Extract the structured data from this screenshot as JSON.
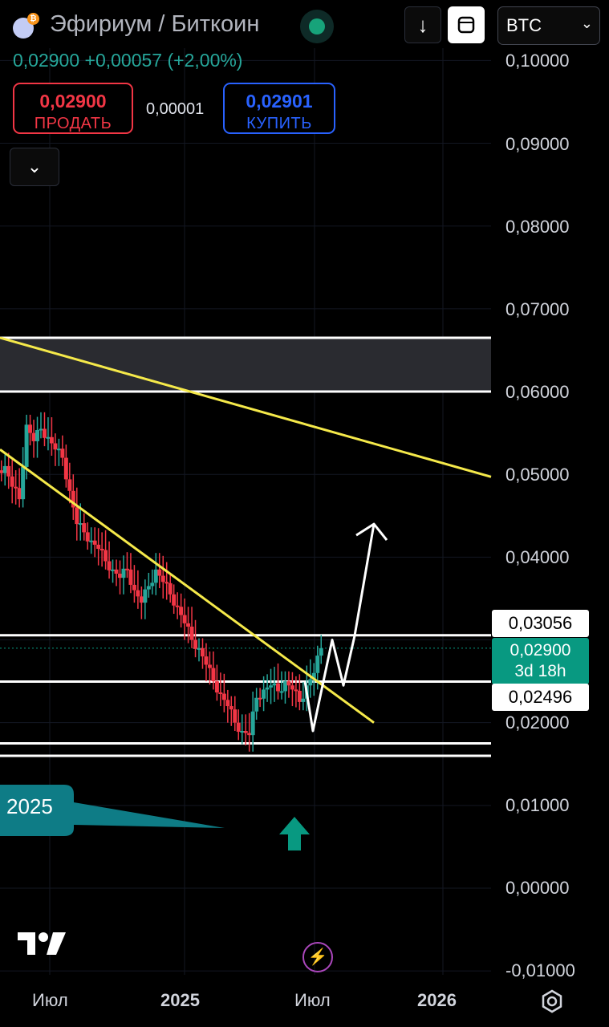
{
  "header": {
    "title": "Эфириум / Биткоин",
    "btc_icon_glyph": "₿",
    "symbol_select": "BTC"
  },
  "quote": {
    "price": "0,02900",
    "change": "+0,00057",
    "change_pct": "(+2,00%)"
  },
  "trade": {
    "sell_price": "0,02900",
    "sell_label": "ПРОДАТЬ",
    "spread": "0,00001",
    "buy_price": "0,02901",
    "buy_label": "КУПИТЬ"
  },
  "y_axis": {
    "ticks": [
      "0,10000",
      "0,09000",
      "0,08000",
      "0,07000",
      "0,06000",
      "0,05000",
      "0,04000",
      "0,02000",
      "0,01000",
      "0,00000",
      "-0,01000"
    ]
  },
  "x_axis": {
    "ticks": [
      "Июл",
      "2025",
      "Июл",
      "2026"
    ]
  },
  "price_labels": {
    "upper": "0,03056",
    "current_price": "0,02900",
    "countdown": "3d 18h",
    "lower": "0,02496"
  },
  "annotations": {
    "callout_text": "2025"
  },
  "colors": {
    "up": "#26a69a",
    "down": "#f23645",
    "trendline": "#f5e94a",
    "accent_blue": "#2962ff",
    "callout": "#0e7c86"
  },
  "icons": {
    "download": "arrow-down-icon",
    "fullscreen": "square-icon",
    "collapse": "chevron-down-icon",
    "bolt": "lightning-icon",
    "settings": "hexagon-settings-icon"
  },
  "chart_data": {
    "type": "candlestick",
    "symbol": "ETH/BTC",
    "ylim": [
      -0.01,
      0.1
    ],
    "zones": [
      {
        "kind": "resistance-box",
        "low": 0.06,
        "high": 0.0665
      },
      {
        "kind": "support-line",
        "value": 0.03056
      },
      {
        "kind": "support-line",
        "value": 0.02496
      },
      {
        "kind": "support-line",
        "value": 0.0175
      },
      {
        "kind": "support-line",
        "value": 0.016
      }
    ],
    "trendlines": [
      {
        "from": [
          0,
          0.0665
        ],
        "to": [
          1,
          0.0497
        ]
      },
      {
        "from": [
          0,
          0.053
        ],
        "to": [
          1,
          0.02
        ]
      }
    ],
    "closes": [
      0.051,
      0.0485,
      0.047,
      0.056,
      0.054,
      0.0555,
      0.0545,
      0.053,
      0.052,
      0.048,
      0.044,
      0.043,
      0.042,
      0.041,
      0.0395,
      0.0385,
      0.0375,
      0.0385,
      0.036,
      0.0345,
      0.0365,
      0.0385,
      0.037,
      0.0355,
      0.034,
      0.032,
      0.03,
      0.029,
      0.027,
      0.025,
      0.0235,
      0.022,
      0.02,
      0.019,
      0.0185,
      0.023,
      0.024,
      0.0245,
      0.0238,
      0.025,
      0.024,
      0.0225,
      0.0245,
      0.026,
      0.029
    ],
    "projection": [
      [
        0.0212,
        0.019
      ],
      [
        0.024,
        0.03
      ],
      [
        0.026,
        0.0245
      ],
      [
        0.03,
        0.0305
      ],
      [
        0.044,
        0.044
      ]
    ]
  }
}
